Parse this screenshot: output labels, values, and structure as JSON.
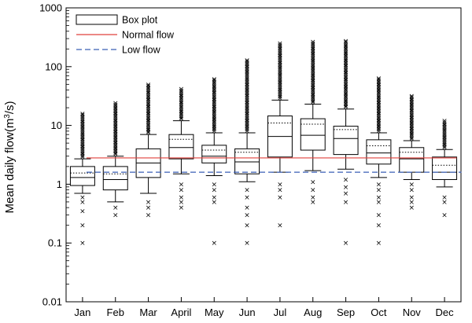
{
  "chart_data": {
    "type": "box",
    "title": "",
    "xlabel": "",
    "ylabel_main": "Mean daily flow(m",
    "ylabel_sup": "3",
    "ylabel_tail": "/s)",
    "yscale": "log",
    "ylim": [
      0.01,
      1000
    ],
    "yticks": [
      "0.01",
      "0.1",
      "1",
      "10",
      "100",
      "1000"
    ],
    "categories": [
      "Jan",
      "Feb",
      "Mar",
      "April",
      "May",
      "Jun",
      "Jul",
      "Aug",
      "Sep",
      "Oct",
      "Nov",
      "Dec"
    ],
    "boxes": [
      {
        "lw": 0.7,
        "q1": 0.95,
        "median": 1.3,
        "mean": 1.55,
        "q3": 2.0,
        "uw": 2.7,
        "outliers_low": [
          0.6,
          0.5,
          0.35,
          0.2,
          0.1
        ],
        "outliers_high_max": 16
      },
      {
        "lw": 0.5,
        "q1": 0.8,
        "median": 1.2,
        "mean": 1.5,
        "q3": 2.0,
        "uw": 3.0,
        "outliers_low": [
          0.4,
          0.3
        ],
        "outliers_high_max": 24
      },
      {
        "lw": 0.7,
        "q1": 1.3,
        "median": 2.3,
        "mean": 2.8,
        "q3": 4.0,
        "uw": 7.0,
        "outliers_low": [
          0.5,
          0.4,
          0.3
        ],
        "outliers_high_max": 50
      },
      {
        "lw": 1.5,
        "q1": 2.7,
        "median": 4.2,
        "mean": 5.8,
        "q3": 7.0,
        "uw": 12.0,
        "outliers_low": [
          1.0,
          0.8,
          0.6,
          0.5,
          0.4
        ],
        "outliers_high_max": 42
      },
      {
        "lw": 1.4,
        "q1": 2.3,
        "median": 3.0,
        "mean": 3.8,
        "q3": 4.6,
        "uw": 7.5,
        "outliers_low": [
          1.0,
          0.8,
          0.6,
          0.5,
          0.1
        ],
        "outliers_high_max": 62
      },
      {
        "lw": 1.1,
        "q1": 1.5,
        "median": 2.4,
        "mean": 3.5,
        "q3": 4.0,
        "uw": 7.5,
        "outliers_low": [
          0.8,
          0.6,
          0.4,
          0.3,
          0.2,
          0.1
        ],
        "outliers_high_max": 130
      },
      {
        "lw": 1.6,
        "q1": 2.9,
        "median": 6.5,
        "mean": 11.0,
        "q3": 14.5,
        "uw": 27.0,
        "outliers_low": [
          1.0,
          0.8,
          0.6,
          0.2
        ],
        "outliers_high_max": 250
      },
      {
        "lw": 1.7,
        "q1": 3.8,
        "median": 6.8,
        "mean": 10.5,
        "q3": 13.0,
        "uw": 23.0,
        "outliers_low": [
          1.1,
          0.8,
          0.6,
          0.5
        ],
        "outliers_high_max": 265
      },
      {
        "lw": 1.8,
        "q1": 3.2,
        "median": 6.0,
        "mean": 8.5,
        "q3": 9.7,
        "uw": 19.0,
        "outliers_low": [
          1.2,
          0.9,
          0.7,
          0.5,
          0.1
        ],
        "outliers_high_max": 275
      },
      {
        "lw": 1.3,
        "q1": 2.2,
        "median": 3.4,
        "mean": 4.5,
        "q3": 5.7,
        "uw": 7.5,
        "outliers_low": [
          1.0,
          0.8,
          0.6,
          0.5,
          0.3,
          0.2,
          0.1
        ],
        "outliers_high_max": 64
      },
      {
        "lw": 1.2,
        "q1": 1.6,
        "median": 2.7,
        "mean": 3.5,
        "q3": 4.2,
        "uw": 5.5,
        "outliers_low": [
          1.0,
          0.8,
          0.6,
          0.5,
          0.4
        ],
        "outliers_high_max": 32
      },
      {
        "lw": 0.9,
        "q1": 1.2,
        "median": 1.6,
        "mean": 2.1,
        "q3": 2.9,
        "uw": 3.9,
        "outliers_low": [
          0.6,
          0.5,
          0.3
        ],
        "outliers_high_max": 12
      }
    ],
    "normal_flow": 2.8,
    "low_flow": 1.6,
    "legend": {
      "placement": "top-left",
      "items": [
        {
          "label": "Box plot",
          "kind": "box"
        },
        {
          "label": "Normal flow",
          "kind": "line",
          "color": "#e0403c"
        },
        {
          "label": "Low flow",
          "kind": "dashed",
          "color": "#3a5fb5"
        }
      ]
    },
    "colors": {
      "normal_flow": "#e0403c",
      "low_flow": "#3a5fb5",
      "box": "#000000"
    }
  }
}
